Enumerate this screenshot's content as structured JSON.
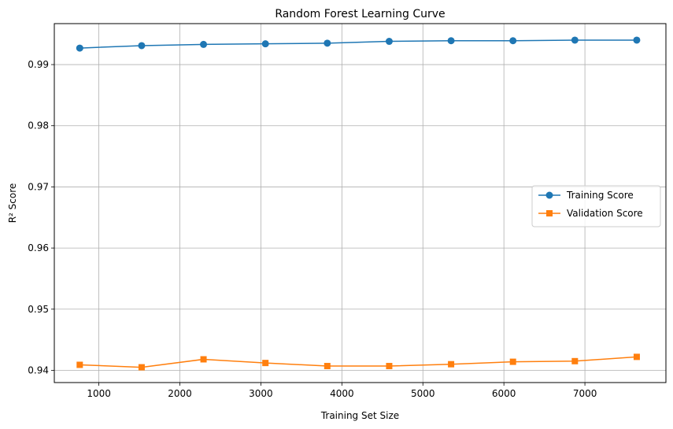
{
  "chart_data": {
    "type": "line",
    "title": "Random Forest Learning Curve",
    "xlabel": "Training Set Size",
    "ylabel": "R² Score",
    "xlim": [
      450,
      8000
    ],
    "ylim": [
      0.938,
      0.9967
    ],
    "xticks": [
      1000,
      2000,
      3000,
      4000,
      5000,
      6000,
      7000
    ],
    "xtick_labels": [
      "1000",
      "2000",
      "3000",
      "4000",
      "5000",
      "6000",
      "7000"
    ],
    "yticks": [
      0.94,
      0.95,
      0.96,
      0.97,
      0.98,
      0.99
    ],
    "ytick_labels": [
      "0.94",
      "0.95",
      "0.96",
      "0.97",
      "0.98",
      "0.99"
    ],
    "grid": true,
    "legend_position": "center-right",
    "x": [
      764,
      1528,
      2292,
      3056,
      3820,
      4584,
      5348,
      6112,
      6876,
      7640
    ],
    "series": [
      {
        "name": "Training Score",
        "color": "#1f77b4",
        "marker": "circle",
        "values": [
          0.9927,
          0.9931,
          0.9933,
          0.9934,
          0.9935,
          0.9938,
          0.9939,
          0.9939,
          0.994,
          0.994
        ]
      },
      {
        "name": "Validation Score",
        "color": "#ff7f0e",
        "marker": "square",
        "values": [
          0.9409,
          0.9405,
          0.9418,
          0.9412,
          0.9407,
          0.9407,
          0.941,
          0.9414,
          0.9415,
          0.9422
        ]
      }
    ]
  }
}
